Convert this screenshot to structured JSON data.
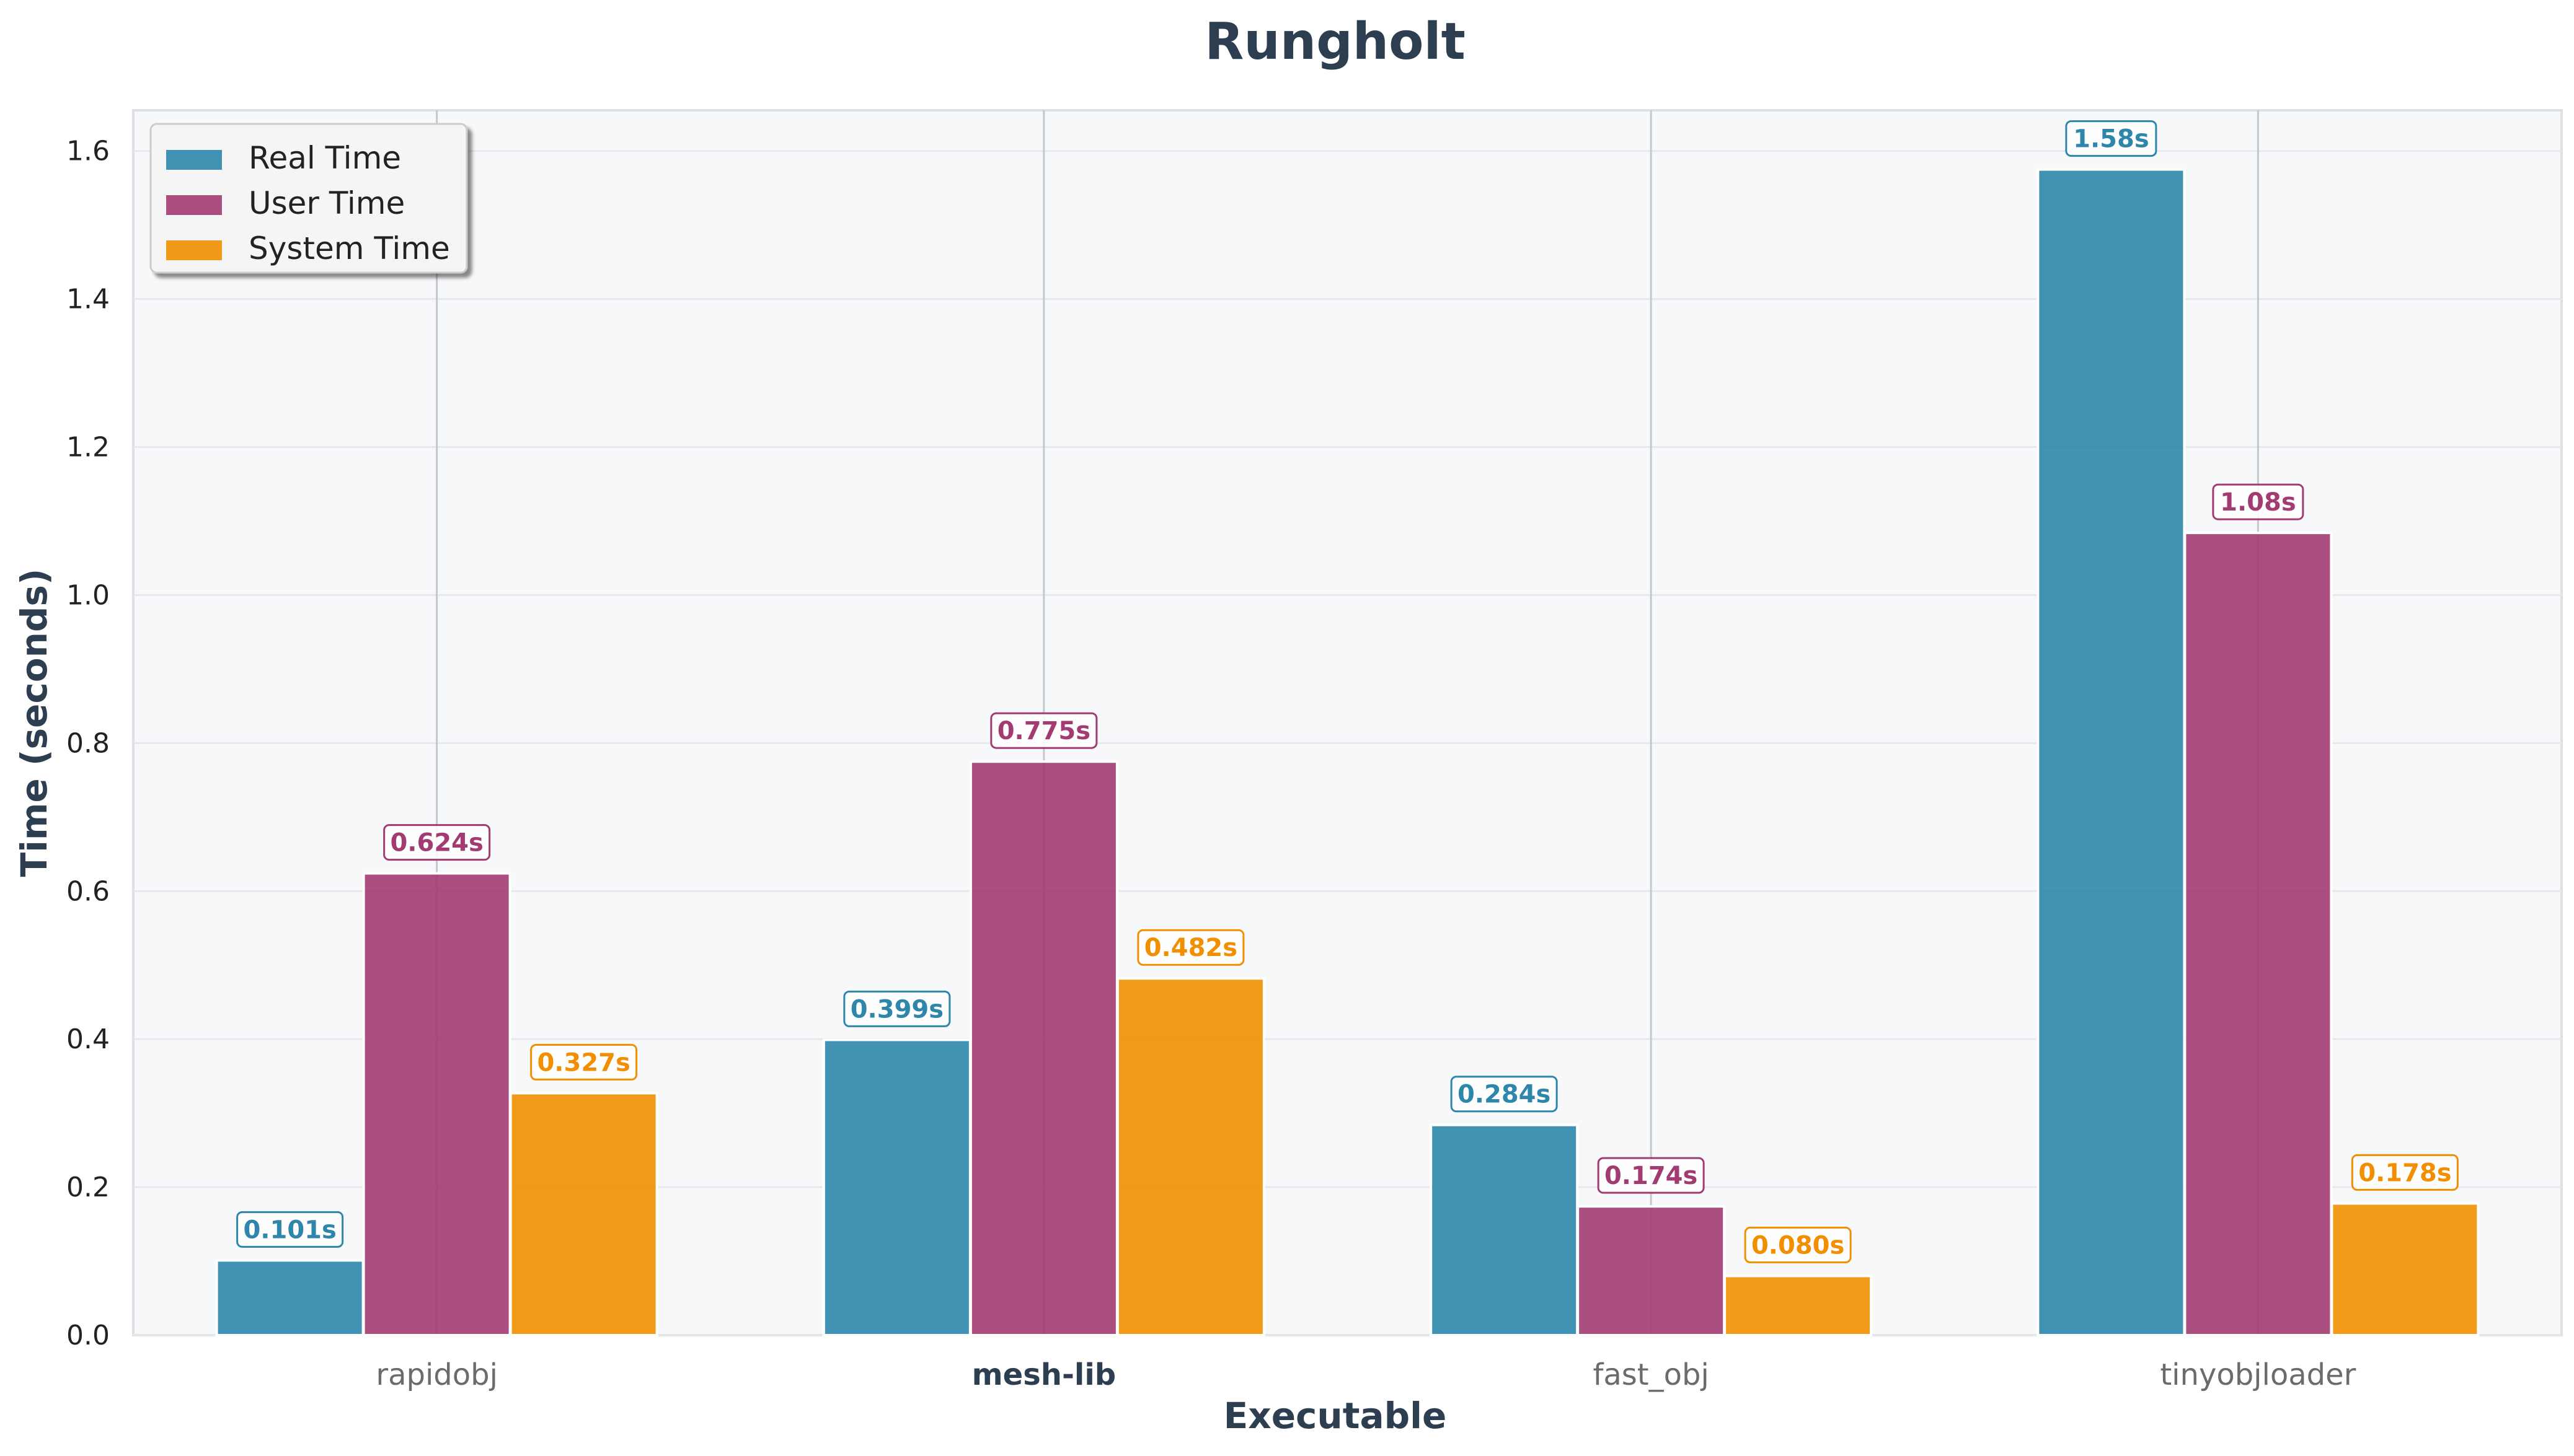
{
  "chart_data": {
    "type": "bar",
    "title": "Rungholt",
    "xlabel": "Executable",
    "ylabel": "Time (seconds)",
    "categories": [
      "rapidobj",
      "mesh-lib",
      "fast_obj",
      "tinyobjloader"
    ],
    "highlight_category": "mesh-lib",
    "series": [
      {
        "name": "Real Time",
        "color": "#2e86ab",
        "values": [
          0.101,
          0.399,
          0.284,
          1.575
        ],
        "labels": [
          "0.101s",
          "0.399s",
          "0.284s",
          "1.58s"
        ]
      },
      {
        "name": "User Time",
        "color": "#a23b72",
        "values": [
          0.624,
          0.775,
          0.174,
          1.084
        ],
        "labels": [
          "0.624s",
          "0.775s",
          "0.174s",
          "1.08s"
        ]
      },
      {
        "name": "System Time",
        "color": "#f18f01",
        "values": [
          0.327,
          0.482,
          0.08,
          0.178
        ],
        "labels": [
          "0.327s",
          "0.482s",
          "0.080s",
          "0.178s"
        ]
      }
    ],
    "ylim": [
      0,
      1.655
    ],
    "yticks": [
      0.0,
      0.2,
      0.4,
      0.6,
      0.8,
      1.0,
      1.2,
      1.4,
      1.6
    ],
    "ytick_labels": [
      "0.0",
      "0.2",
      "0.4",
      "0.6",
      "0.8",
      "1.0",
      "1.2",
      "1.4",
      "1.6"
    ],
    "grid": true,
    "legend_position": "top-left",
    "colors": {
      "background": "#f7f8fa",
      "grid": "#e6e8eb",
      "text": "#2c3e50"
    }
  }
}
